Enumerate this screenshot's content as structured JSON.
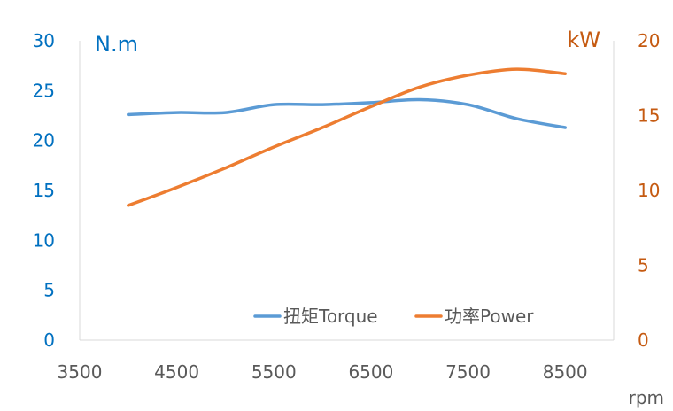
{
  "chart_data": {
    "type": "line",
    "x_axis": {
      "label": "rpm",
      "ticks": [
        3500,
        4500,
        5500,
        6500,
        7500,
        8500
      ],
      "range": [
        3500,
        9000
      ]
    },
    "y_left": {
      "label": "N.m",
      "ticks": [
        0,
        5,
        10,
        15,
        20,
        25,
        30
      ],
      "range": [
        0,
        30
      ],
      "color": "#0070C0"
    },
    "y_right": {
      "label": "kW",
      "ticks": [
        0,
        5,
        10,
        15,
        20
      ],
      "range": [
        0,
        20
      ],
      "color": "#C55A11"
    },
    "series": [
      {
        "name": "扭矩Torque",
        "axis": "left",
        "color": "#5B9BD5",
        "points": [
          [
            4000,
            22.6
          ],
          [
            4500,
            22.8
          ],
          [
            5000,
            22.8
          ],
          [
            5500,
            23.6
          ],
          [
            6000,
            23.6
          ],
          [
            6500,
            23.8
          ],
          [
            7000,
            24.1
          ],
          [
            7500,
            23.6
          ],
          [
            8000,
            22.2
          ],
          [
            8500,
            21.3
          ]
        ]
      },
      {
        "name": "功率Power",
        "axis": "right",
        "color": "#ED7D31",
        "points": [
          [
            4000,
            9.0
          ],
          [
            4500,
            10.2
          ],
          [
            5000,
            11.5
          ],
          [
            5500,
            12.9
          ],
          [
            6000,
            14.2
          ],
          [
            6500,
            15.6
          ],
          [
            7000,
            16.9
          ],
          [
            7500,
            17.7
          ],
          [
            8000,
            18.1
          ],
          [
            8500,
            17.8
          ]
        ]
      }
    ],
    "legend": "bottom-right, inside plot",
    "grid": false
  }
}
